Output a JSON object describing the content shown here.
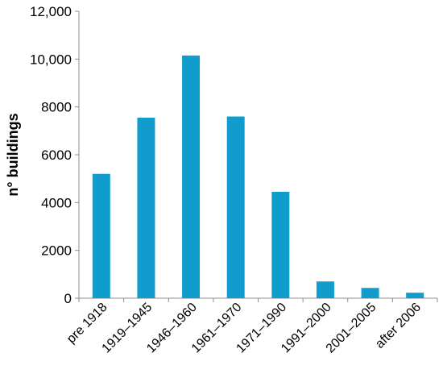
{
  "chart_data": {
    "type": "bar",
    "title": "",
    "xlabel": "",
    "ylabel": "n° buildings",
    "ylim": [
      0,
      12000
    ],
    "grid": false,
    "categories": [
      "pre 1918",
      "1919–1945",
      "1946–1960",
      "1961–1970",
      "1971–1990",
      "1991–2000",
      "2001–2005",
      "after 2006"
    ],
    "values": [
      5200,
      7550,
      10150,
      7600,
      4450,
      700,
      430,
      230
    ],
    "y_ticks": [
      {
        "value": 0,
        "label": "0"
      },
      {
        "value": 2000,
        "label": "2000"
      },
      {
        "value": 4000,
        "label": "4000"
      },
      {
        "value": 6000,
        "label": "6000"
      },
      {
        "value": 8000,
        "label": "8000"
      },
      {
        "value": 10000,
        "label": "10,000"
      },
      {
        "value": 12000,
        "label": "12,000"
      }
    ],
    "colors": {
      "bar": "#109dce",
      "axis": "#8c8c8c"
    }
  }
}
